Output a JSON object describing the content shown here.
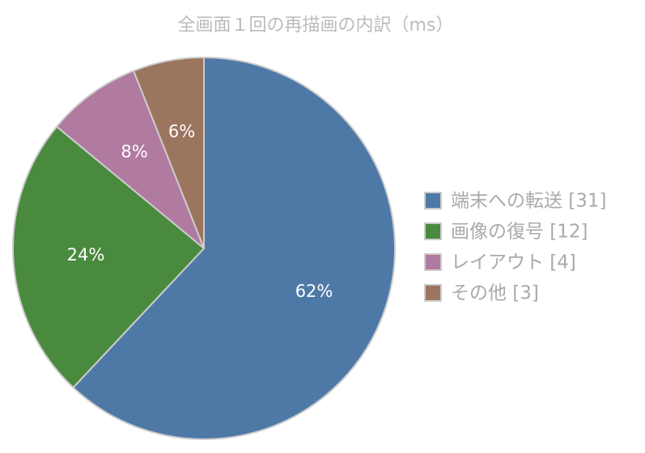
{
  "chart_data": {
    "type": "pie",
    "title": "全画面１回の再描画の内訳（ms）",
    "categories": [
      "端末への転送 [31]",
      "画像の復号 [12]",
      "レイアウト [4]",
      "その他 [3]"
    ],
    "values": [
      62,
      24,
      8,
      6
    ],
    "value_labels": [
      "62%",
      "24%",
      "8%",
      "6%"
    ],
    "colors": [
      "#4e79a7",
      "#4a8a3e",
      "#b07aa1",
      "#9c755f"
    ],
    "legend": "right"
  }
}
